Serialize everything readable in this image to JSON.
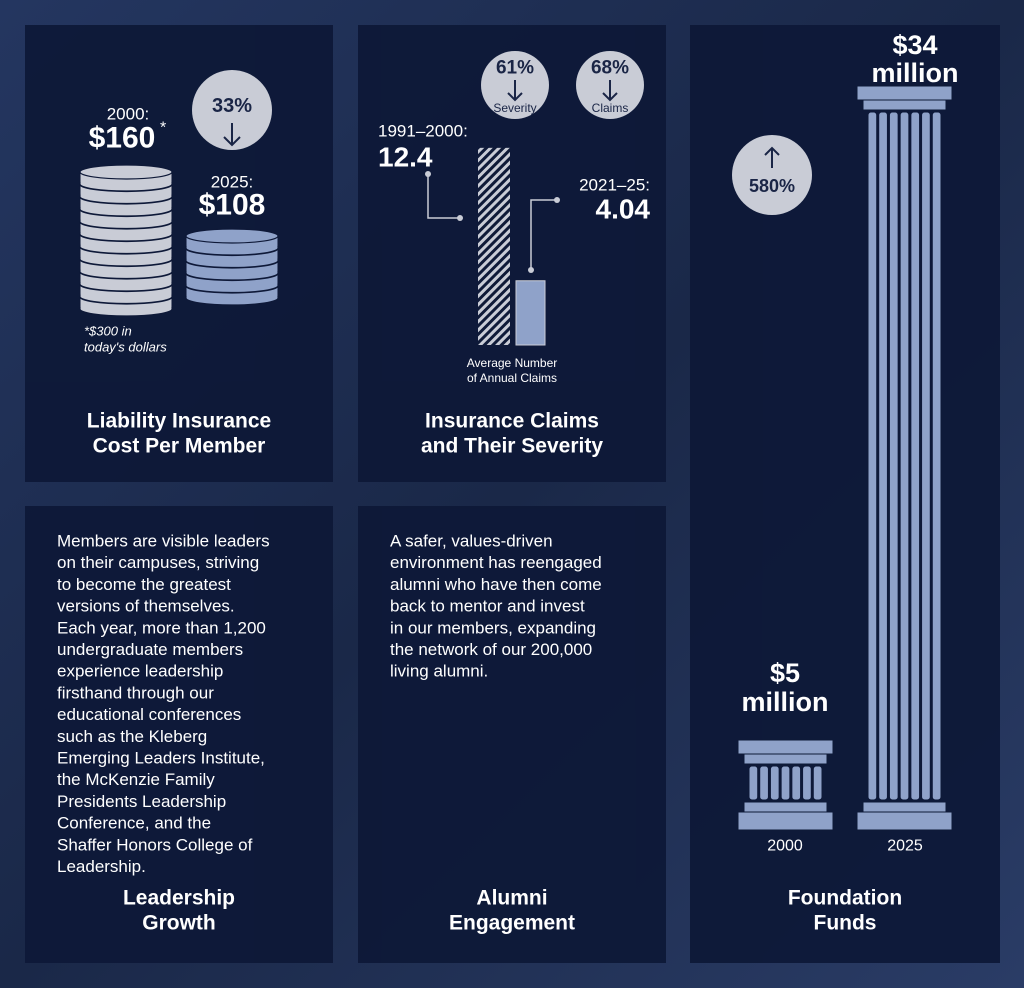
{
  "liability": {
    "year_a": "2000:",
    "value_a": "$160",
    "asterisk": "*",
    "change": "33%",
    "year_b": "2025:",
    "value_b": "$108",
    "footnote": [
      "*$300 in",
      "today's dollars"
    ],
    "title": [
      "Liability Insurance",
      "Cost Per Member"
    ]
  },
  "claims": {
    "badges": [
      {
        "value": "61%",
        "label": "Severity"
      },
      {
        "value": "68%",
        "label": "Claims"
      }
    ],
    "period_a": "1991–2000:",
    "value_a": 12.4,
    "period_b": "2021–25:",
    "value_b": 4.04,
    "caption": [
      "Average Number",
      "of Annual Claims"
    ],
    "title": [
      "Insurance Claims",
      "and Their Severity"
    ]
  },
  "leadership": {
    "text": [
      "Members are visible leaders",
      "on their campuses, striving",
      "to become the greatest",
      "versions of themselves.",
      "Each year, more than 1,200",
      "undergraduate members",
      "experience leadership",
      "firsthand through our",
      "educational conferences",
      "such as the Kleberg",
      "Emerging Leaders Institute,",
      "the McKenzie Family",
      "Presidents Leadership",
      "Conference, and the",
      "Shaffer Honors College of",
      "Leadership."
    ],
    "title": [
      "Leadership",
      "Growth"
    ]
  },
  "alumni": {
    "text": [
      "A safer, values-driven",
      "environment has reengaged",
      "alumni who have then come",
      "back to mentor and invest",
      "in our members, expanding",
      "the network of our 200,000",
      "living alumni."
    ],
    "title": [
      "Alumni",
      "Engagement"
    ]
  },
  "foundation": {
    "change": "580%",
    "amount_a": [
      "$5",
      "million"
    ],
    "amount_b": [
      "$34",
      "million"
    ],
    "year_a": "2000",
    "year_b": "2025",
    "title": [
      "Foundation",
      "Funds"
    ]
  }
}
